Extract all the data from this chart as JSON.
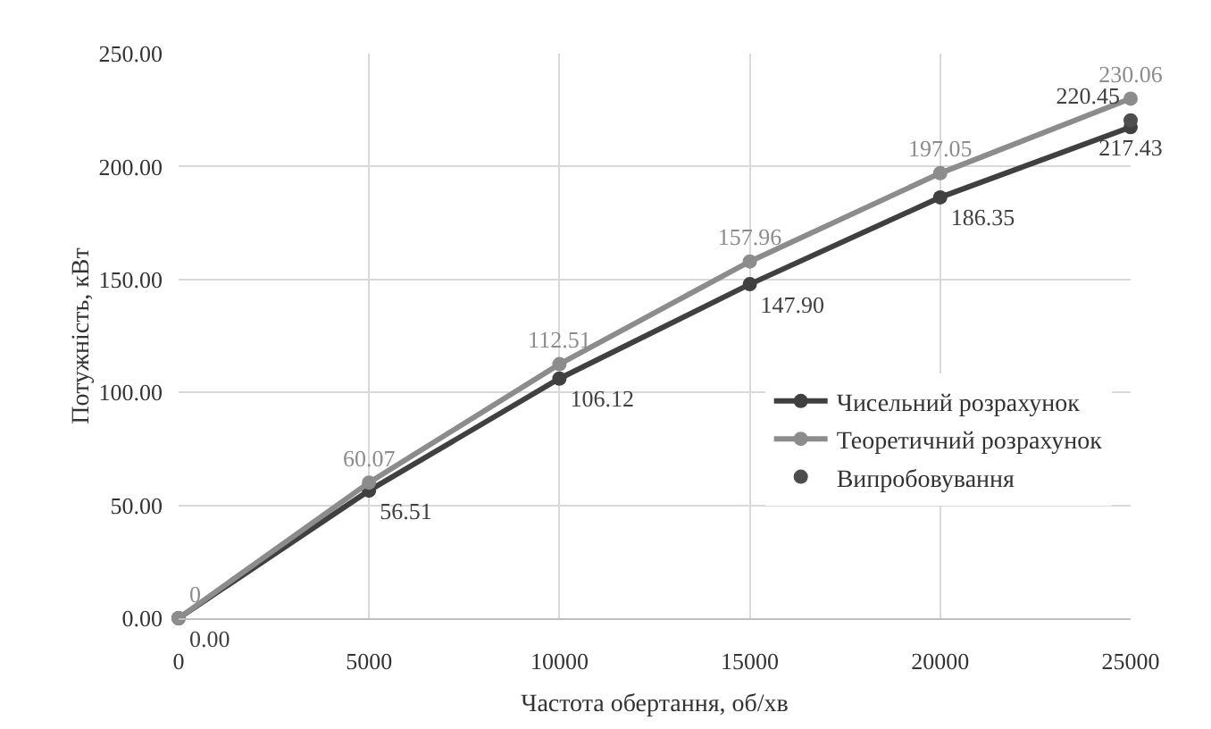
{
  "chart_data": {
    "type": "line",
    "xlabel": "Частота обертання, об/хв",
    "ylabel": "Потужність, кВт",
    "x": [
      0,
      5000,
      10000,
      15000,
      20000,
      25000
    ],
    "series": [
      {
        "name": "Чисельний розрахунок",
        "color": "#404040",
        "values": [
          0,
          56.51,
          106.12,
          147.9,
          186.35,
          217.43
        ],
        "value_labels": [
          "0.00",
          "56.51",
          "106.12",
          "147.90",
          "186.35",
          "217.43"
        ]
      },
      {
        "name": "Теоретичний розрахунок",
        "color": "#8c8c8c",
        "values": [
          0,
          60.07,
          112.51,
          157.96,
          197.05,
          230.06
        ],
        "value_labels": [
          "0",
          "60.07",
          "112.51",
          "157.96",
          "197.05",
          "230.06"
        ]
      },
      {
        "name": "Випробовування",
        "type": "scatter",
        "color": "#4d4d4d",
        "x": [
          25000
        ],
        "values": [
          220.45
        ],
        "value_labels": [
          "220.45"
        ]
      }
    ],
    "xlim": [
      0,
      25000
    ],
    "xticks": [
      0,
      5000,
      10000,
      15000,
      20000,
      25000
    ],
    "ylim": [
      0,
      250
    ],
    "yticks": [
      {
        "value": 0,
        "label": "0.00"
      },
      {
        "value": 50,
        "label": "50.00"
      },
      {
        "value": 100,
        "label": "100.00"
      },
      {
        "value": 150,
        "label": "150.00"
      },
      {
        "value": 200,
        "label": "200.00"
      },
      {
        "value": 250,
        "label": "250.00"
      }
    ],
    "grid": true,
    "legend": "bottom right",
    "marker": "circle",
    "line_style": "solid"
  }
}
